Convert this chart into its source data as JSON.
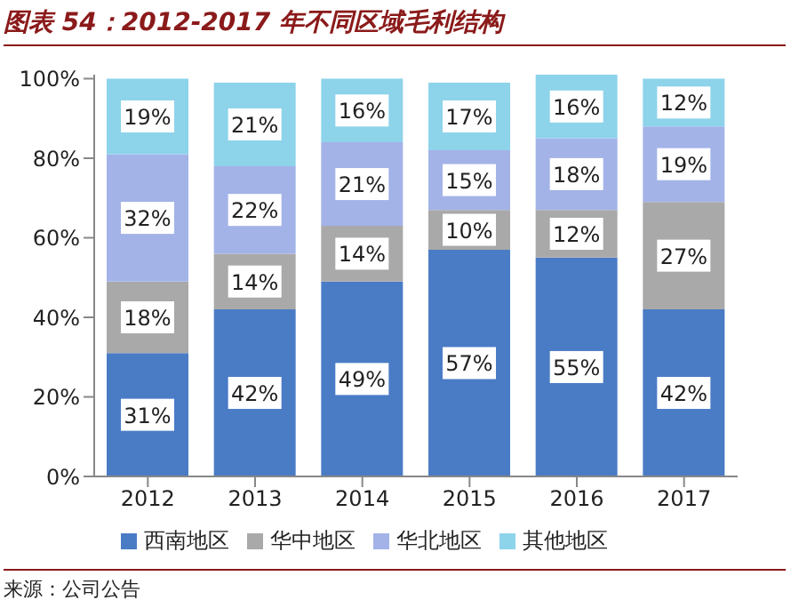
{
  "chart_data": {
    "type": "bar",
    "title": "图表 54：2012-2017 年不同区域毛利结构",
    "stacked": true,
    "categories": [
      "2012",
      "2013",
      "2014",
      "2015",
      "2016",
      "2017"
    ],
    "series": [
      {
        "name": "西南地区",
        "color": "#4a7cc6",
        "values": [
          31,
          42,
          49,
          57,
          55,
          42
        ],
        "value_labels": [
          "31%",
          "42%",
          "49%",
          "57%",
          "55%",
          "42%"
        ]
      },
      {
        "name": "华中地区",
        "color": "#a9a9a9",
        "values": [
          18,
          14,
          14,
          10,
          12,
          27
        ],
        "value_labels": [
          "18%",
          "14%",
          "14%",
          "10%",
          "12%",
          "27%"
        ]
      },
      {
        "name": "华北地区",
        "color": "#a3b3e8",
        "values": [
          32,
          22,
          21,
          15,
          18,
          19
        ],
        "value_labels": [
          "32%",
          "22%",
          "21%",
          "15%",
          "18%",
          "19%"
        ]
      },
      {
        "name": "其他地区",
        "color": "#8dd3ea",
        "values": [
          19,
          21,
          16,
          17,
          16,
          12
        ],
        "value_labels": [
          "19%",
          "21%",
          "16%",
          "17%",
          "16%",
          "12%"
        ]
      }
    ],
    "ylim": [
      0,
      101
    ],
    "yticks": [
      {
        "value": 0,
        "label": "0%"
      },
      {
        "value": 20,
        "label": "20%"
      },
      {
        "value": 40,
        "label": "40%"
      },
      {
        "value": 60,
        "label": "60%"
      },
      {
        "value": 80,
        "label": "80%"
      },
      {
        "value": 100,
        "label": "100%"
      }
    ],
    "grid": false,
    "legend": "bottom",
    "annotations": [
      "来源：公司公告"
    ]
  }
}
